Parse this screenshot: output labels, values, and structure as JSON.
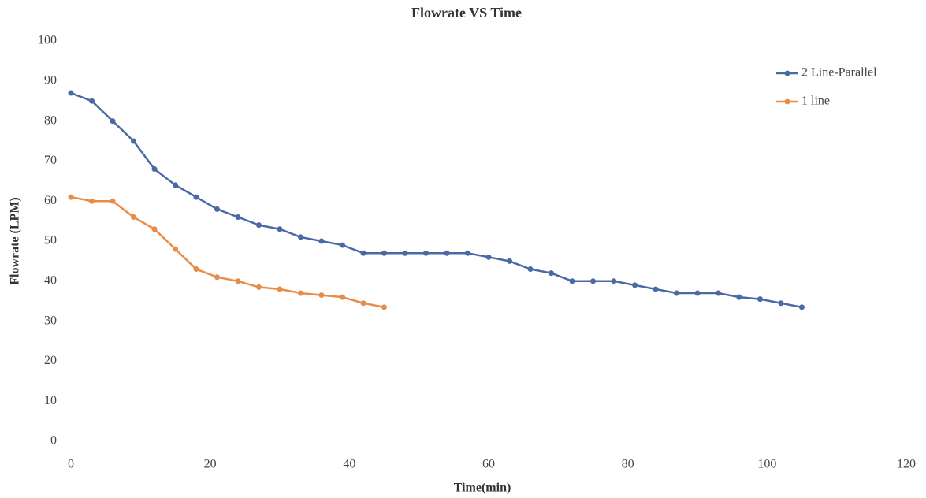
{
  "chart_data": {
    "type": "line",
    "title": "Flowrate VS Time",
    "x_label": "Time(min)",
    "y_label": "Flowrate (LPM)",
    "x": [
      0,
      3,
      6,
      9,
      12,
      15,
      18,
      21,
      24,
      27,
      30,
      33,
      36,
      39,
      42,
      45,
      48,
      51,
      54,
      57,
      60,
      63,
      66,
      69,
      72,
      75,
      78,
      81,
      84,
      87,
      90,
      93,
      96,
      99,
      102,
      105
    ],
    "series": [
      {
        "name": "2 Line-Parallel",
        "color": "#4a6aa5",
        "values": [
          87,
          85,
          80,
          75,
          68,
          64,
          61,
          58,
          56,
          54,
          53,
          51,
          50,
          49,
          47,
          47,
          47,
          47,
          47,
          47,
          46,
          45,
          43,
          42,
          40,
          40,
          40,
          39,
          38,
          37,
          37,
          37,
          36,
          35.5,
          34.5,
          33.5
        ]
      },
      {
        "name": "1 line",
        "color": "#e88c4a",
        "values": [
          61,
          60,
          60,
          56,
          53,
          48,
          43,
          41,
          40,
          38.5,
          38,
          37,
          36.5,
          36,
          34.5,
          33.5,
          null,
          null,
          null,
          null,
          null,
          null,
          null,
          null,
          null,
          null,
          null,
          null,
          null,
          null,
          null,
          null,
          null,
          null,
          null,
          null
        ]
      }
    ],
    "xlim": [
      0,
      120
    ],
    "xticks": [
      0,
      20,
      40,
      60,
      80,
      100,
      120
    ],
    "ylim": [
      0,
      100
    ],
    "yticks": [
      0,
      10,
      20,
      30,
      40,
      50,
      60,
      70,
      80,
      90,
      100
    ],
    "grid": false,
    "legend": "upper right"
  }
}
